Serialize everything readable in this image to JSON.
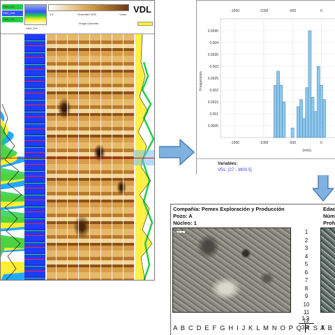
{
  "log_panel": {
    "title": "VDL",
    "curve_labels": [
      "VMV_DH",
      "VMV_DM",
      "VMV_DH"
    ],
    "header_texts": [
      "VMV_DH",
      "1.6",
      "Gravedad VMV",
      "Vmax",
      "Image Diameter"
    ],
    "colors": {
      "vdl_dark": "#6a3a10",
      "vdl_light": "#f2d59a",
      "track_blue": "#1e3cff",
      "curve_yellow": "#ffee33",
      "curve_green": "#22dd44",
      "marker_red": "#e01010"
    }
  },
  "histogram": {
    "top_ticks": [
      "-1500",
      "-1000",
      "-500",
      "0"
    ],
    "bottom_ticks": [
      "-1500",
      "-1000",
      "-500",
      "0"
    ],
    "y_ticks": [
      "0.0045",
      "0.004",
      "0.0035",
      "0.003",
      "0.0025",
      "0.002",
      "0.0015",
      "0.001",
      "0.0005"
    ],
    "ylabel": "Frequencies",
    "xlabel": "(m/s)",
    "variables_title": "Variables:",
    "variables_value": "VDL: [27 - 3900.5]",
    "bar_color": "#8ec8ec"
  },
  "chart_data": {
    "type": "bar",
    "x": [
      -800,
      -750,
      -700,
      -650,
      -600,
      -550,
      -500,
      -450,
      -400,
      -350,
      -300,
      -250,
      -200,
      -150,
      -100,
      -50,
      0,
      50
    ],
    "values": [
      0.0022,
      0.0028,
      0.0022,
      0.0015,
      0.0,
      0.0,
      0.0004,
      0.0,
      0.0013,
      0.0016,
      0.0008,
      0.0021,
      0.0045,
      0.0017,
      0.0011,
      0.003,
      0.0022,
      0.0016
    ],
    "xlabel": "(m/s)",
    "ylabel": "Frequencies",
    "ylim": [
      0,
      0.005
    ],
    "grid": true
  },
  "core_sheet": {
    "company_label": "Compañía:  Pemex Exploración y Producción",
    "well_label": "Pozo: A",
    "core_label": "Núcleo: 1",
    "right_labels": [
      "Edad",
      "Núm",
      "Profu"
    ],
    "photo_tag": "100 µm",
    "depth_numbers": [
      "1",
      "2",
      "3",
      "4",
      "5",
      "6",
      "7",
      "8",
      "9",
      "10",
      "11",
      "12"
    ],
    "letters": "A B C D E F G H I J K L M N O P Q R S T",
    "letters_right": "A B C",
    "fraction_top": "1 2",
    "fraction_bottom": "3 4"
  }
}
